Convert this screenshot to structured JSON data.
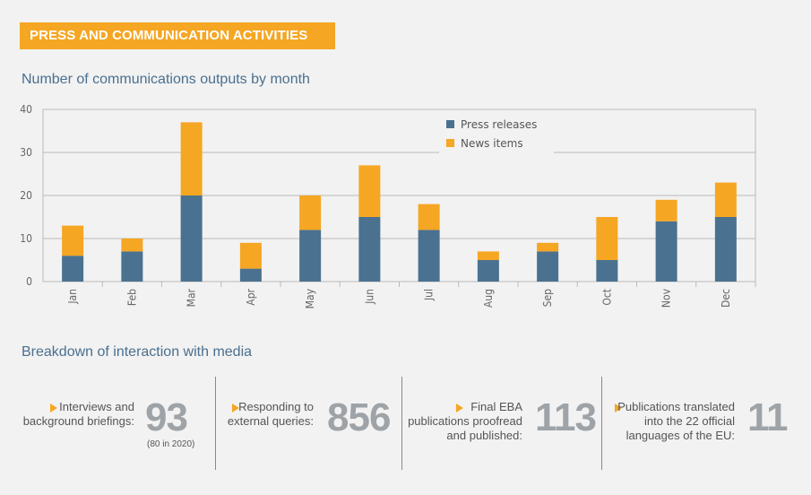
{
  "section_tag": "PRESS AND COMMUNICATION ACTIVITIES",
  "chart_title": "Number of communications outputs by month",
  "chart_data": {
    "type": "bar",
    "stacked": true,
    "categories": [
      "Jan",
      "Feb",
      "Mar",
      "Apr",
      "May",
      "Jun",
      "Jul",
      "Aug",
      "Sep",
      "Oct",
      "Nov",
      "Dec"
    ],
    "series": [
      {
        "name": "Press releases",
        "color": "#4a7190",
        "values": [
          6,
          7,
          20,
          3,
          12,
          15,
          12,
          5,
          7,
          5,
          14,
          15
        ]
      },
      {
        "name": "News items",
        "color": "#f5a623",
        "values": [
          7,
          3,
          17,
          6,
          8,
          12,
          6,
          2,
          2,
          10,
          5,
          8
        ]
      }
    ],
    "yticks": [
      0,
      10,
      20,
      30,
      40
    ],
    "ylim": [
      0,
      40
    ],
    "grid": true,
    "legend_position": "top-right"
  },
  "media_title": "Breakdown of interaction with media",
  "stats": [
    {
      "label_lines": [
        "Interviews and",
        "background briefings:"
      ],
      "value": "93",
      "sub": "(80 in 2020)"
    },
    {
      "label_lines": [
        "Responding to",
        "external queries:"
      ],
      "value": "856",
      "sub": ""
    },
    {
      "label_lines": [
        "Final EBA",
        "publications proofread",
        "and published:"
      ],
      "value": "113",
      "sub": ""
    },
    {
      "label_lines": [
        "Publications translated",
        "into the 22 official",
        "languages of the EU:"
      ],
      "value": "11",
      "sub": ""
    }
  ],
  "colors": {
    "accent": "#f5a623",
    "primary": "#4a7190",
    "title": "#4a6f8f"
  }
}
